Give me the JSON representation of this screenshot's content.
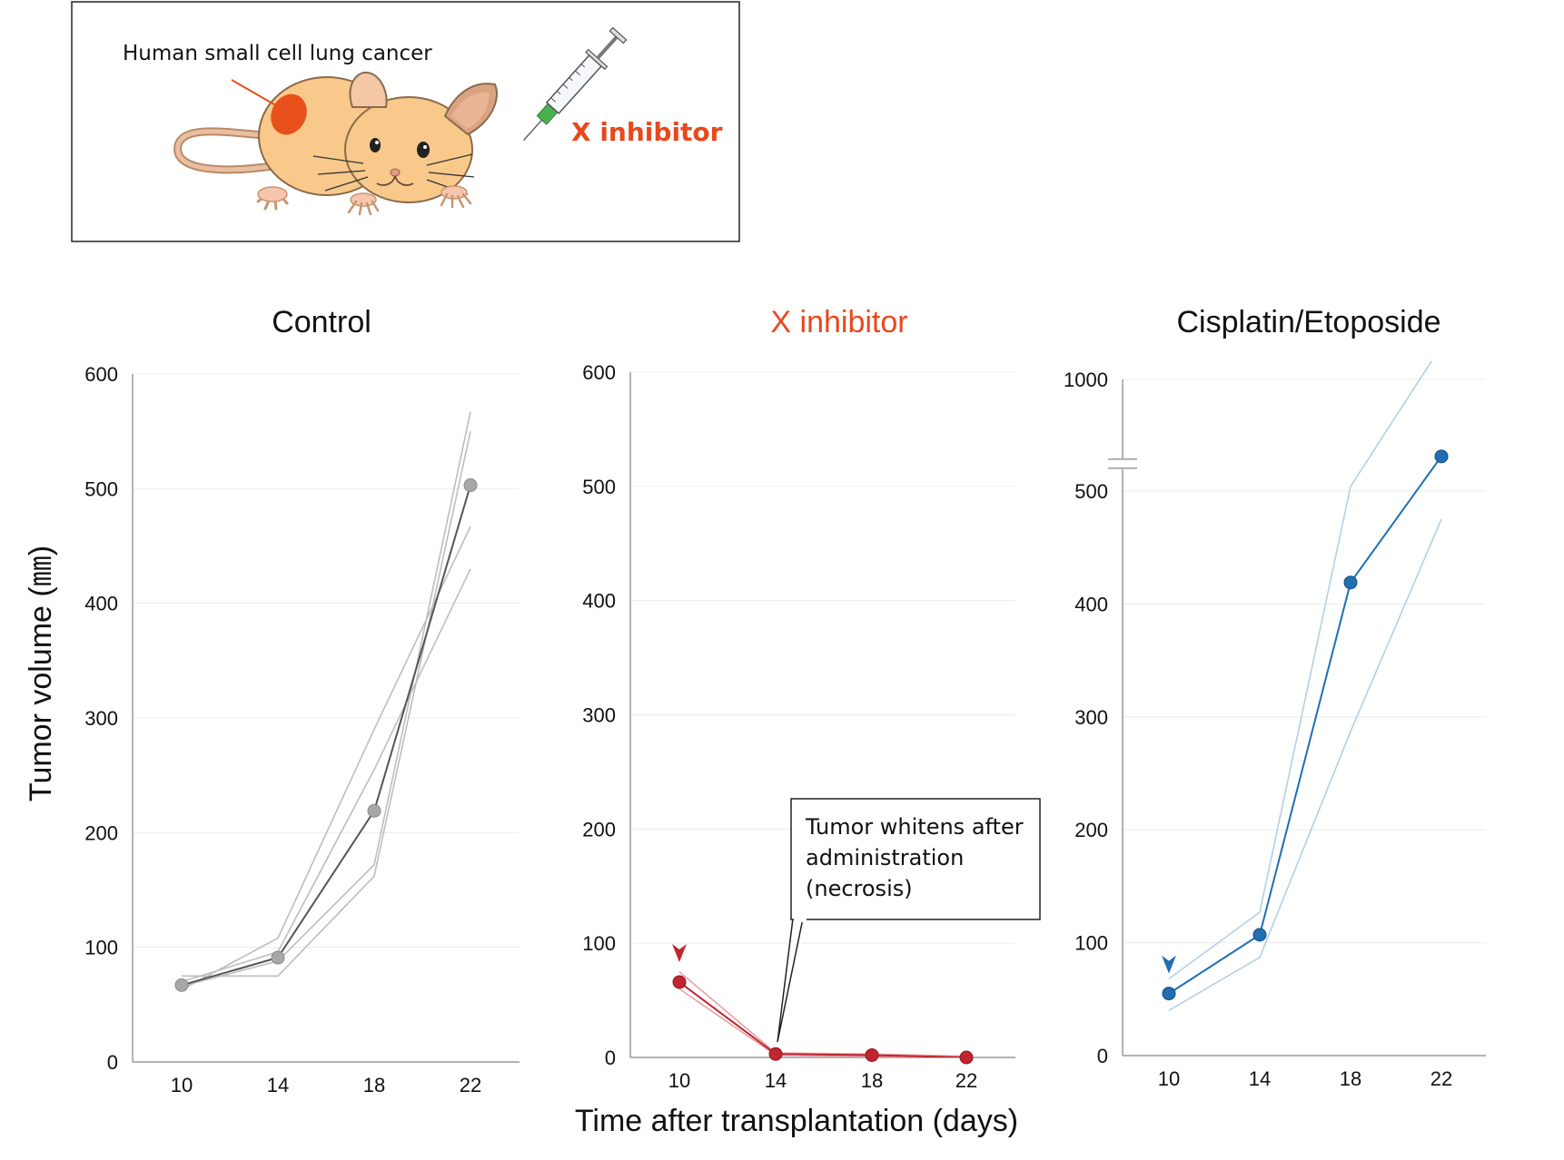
{
  "illustration": {
    "tumor_label": "Human small cell lung cancer",
    "drug_label": "X inhibitor",
    "icons": [
      "mouse-icon",
      "tumor-icon",
      "syringe-icon"
    ]
  },
  "shared": {
    "ylabel": "Tumor volume (㎜)",
    "xlabel": "Time after transplantation (days)"
  },
  "colors": {
    "control": "#9e9e9e",
    "control_mean": "#555555",
    "x_inhibitor": "#c0262f",
    "x_inhibitor_light": "#e8a0a6",
    "cisplatin": "#1f6fb2",
    "cisplatin_light": "#b4cfe6",
    "title_accent": "#e8481c",
    "grid": "#ececec"
  },
  "chart_data": [
    {
      "type": "line",
      "title": "Control",
      "x": [
        10,
        14,
        18,
        22
      ],
      "x_tick_labels": [
        "10",
        "14",
        "18",
        "22"
      ],
      "ylim": [
        0,
        600
      ],
      "y_ticks": [
        0,
        100,
        200,
        300,
        400,
        500,
        600
      ],
      "y_tick_labels": [
        "0",
        "100",
        "200",
        "300",
        "400",
        "500",
        "600"
      ],
      "grid": true,
      "series": [
        {
          "role": "mean",
          "values": [
            67,
            91,
            219,
            503
          ]
        },
        {
          "role": "individual",
          "values": [
            63,
            108,
            290,
            467
          ]
        },
        {
          "role": "individual",
          "values": [
            75,
            75,
            162,
            550
          ]
        },
        {
          "role": "individual",
          "values": [
            70,
            96,
            255,
            430
          ]
        },
        {
          "role": "individual",
          "values": [
            66,
            88,
            172,
            567
          ]
        }
      ]
    },
    {
      "type": "line",
      "title": "X inhibitor",
      "x": [
        10,
        14,
        18,
        22
      ],
      "x_tick_labels": [
        "10",
        "14",
        "18",
        "22"
      ],
      "ylim": [
        0,
        600
      ],
      "y_ticks": [
        0,
        100,
        200,
        300,
        400,
        500,
        600
      ],
      "y_tick_labels": [
        "0",
        "100",
        "200",
        "300",
        "400",
        "500",
        "600"
      ],
      "grid": true,
      "treatment_start_day": 10,
      "annotation": "Tumor whitens after administration (necrosis)",
      "annotation_lines": [
        "Tumor whitens after",
        "administration",
        "(necrosis)"
      ],
      "series": [
        {
          "role": "mean",
          "values": [
            66,
            3,
            2,
            0
          ]
        },
        {
          "role": "individual",
          "values": [
            75,
            4,
            3,
            1
          ]
        },
        {
          "role": "individual",
          "values": [
            60,
            2,
            1,
            0
          ]
        }
      ]
    },
    {
      "type": "line",
      "title": "Cisplatin/Etoposide",
      "x": [
        10,
        14,
        18,
        22
      ],
      "x_tick_labels": [
        "10",
        "14",
        "18",
        "22"
      ],
      "ylim": [
        0,
        1000
      ],
      "axis_break": [
        500,
        1000
      ],
      "y_ticks": [
        0,
        100,
        200,
        300,
        400,
        500,
        1000
      ],
      "y_tick_labels": [
        "0",
        "100",
        "200",
        "300",
        "400",
        "500",
        "1000"
      ],
      "grid": true,
      "treatment_start_day": 10,
      "series": [
        {
          "role": "mean",
          "values": [
            55,
            107,
            419,
            655
          ]
        },
        {
          "role": "individual",
          "values": [
            68,
            127,
            520,
            1150
          ]
        },
        {
          "role": "individual",
          "values": [
            40,
            87,
            287,
            475
          ]
        }
      ]
    }
  ]
}
